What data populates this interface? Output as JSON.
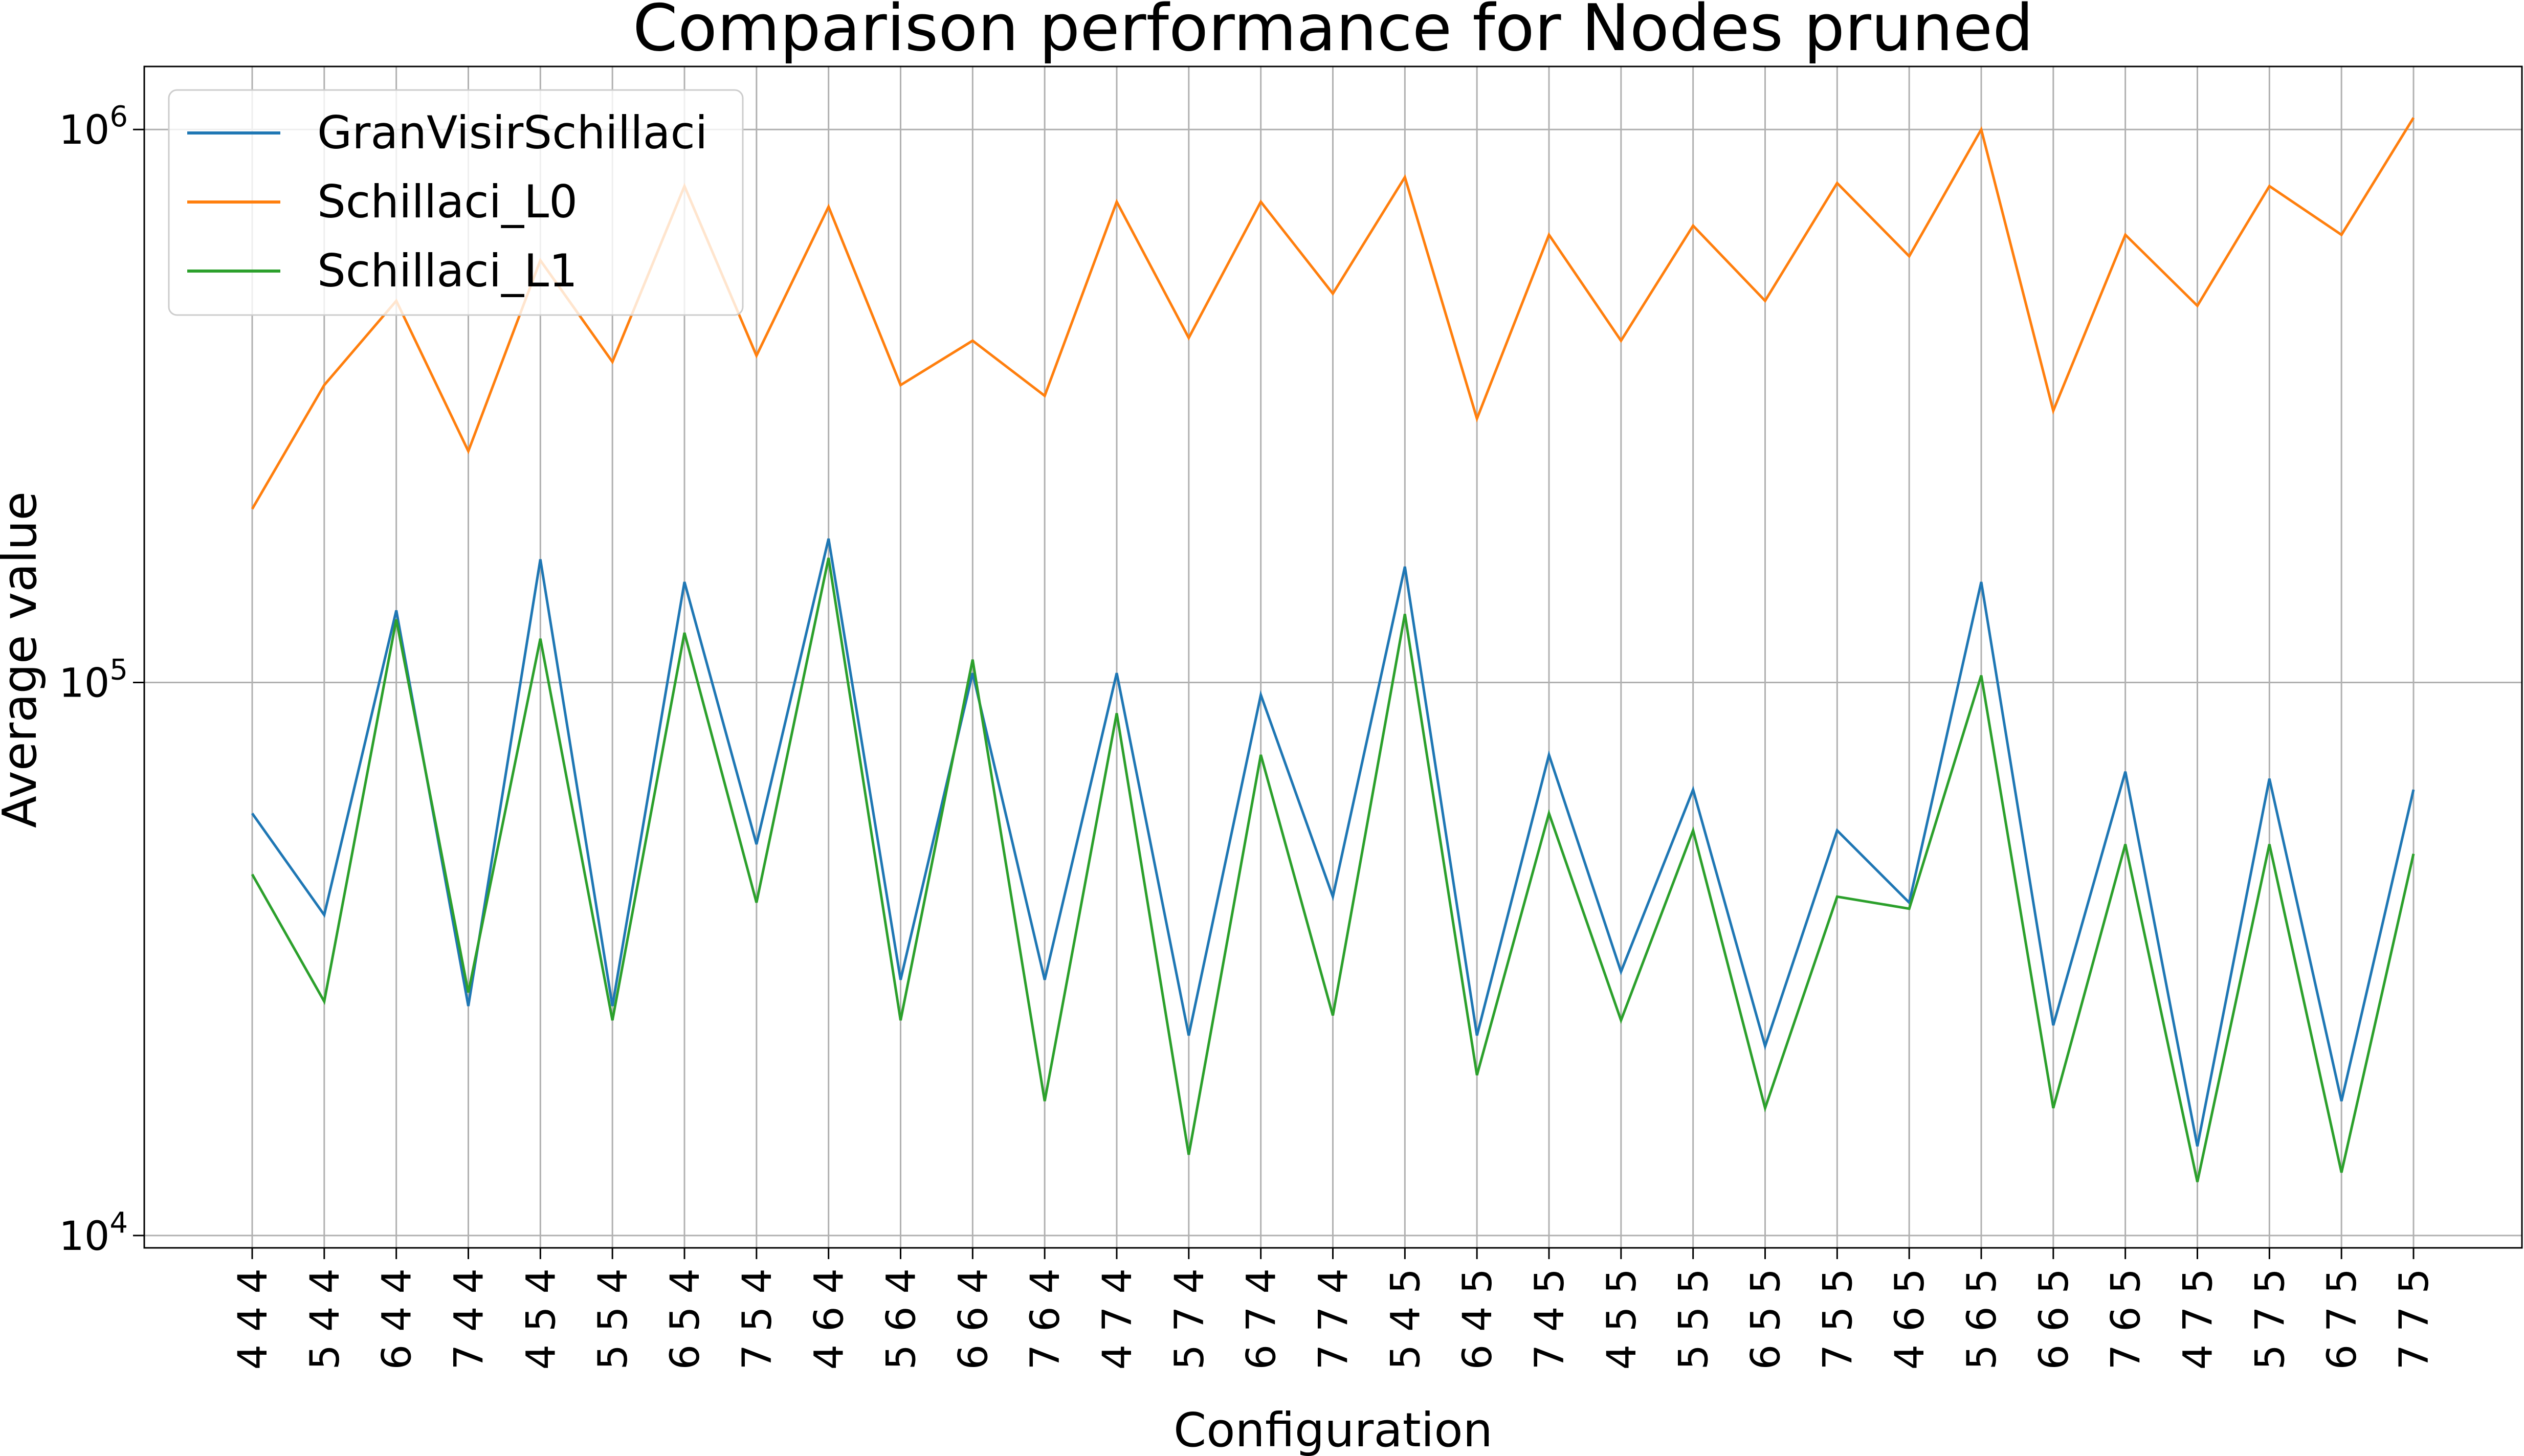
{
  "chart_data": {
    "type": "line",
    "title": "Comparison performance for Nodes pruned",
    "xlabel": "Configuration",
    "ylabel": "Average value",
    "yscale": "log",
    "ylim": [
      9500,
      1300000
    ],
    "y_ticks": [
      {
        "value": 10000,
        "base": "10",
        "exp": "4"
      },
      {
        "value": 100000,
        "base": "10",
        "exp": "5"
      },
      {
        "value": 1000000,
        "base": "10",
        "exp": "6"
      }
    ],
    "grid": true,
    "legend_position": "upper-left",
    "categories": [
      "4 4 4",
      "5 4 4",
      "6 4 4",
      "7 4 4",
      "4 5 4",
      "5 5 4",
      "6 5 4",
      "7 5 4",
      "4 6 4",
      "5 6 4",
      "6 6 4",
      "7 6 4",
      "4 7 4",
      "5 7 4",
      "6 7 4",
      "7 7 4",
      "5 4 5",
      "6 4 5",
      "7 4 5",
      "4 5 5",
      "5 5 5",
      "6 5 5",
      "7 5 5",
      "4 6 5",
      "5 6 5",
      "6 6 5",
      "7 6 5",
      "4 7 5",
      "5 7 5",
      "6 7 5",
      "7 7 5"
    ],
    "series": [
      {
        "name": "GranVisirSchillaci",
        "color": "#1f77b4",
        "values": [
          58000,
          38000,
          135000,
          26000,
          167000,
          26000,
          152000,
          51000,
          182000,
          29000,
          104000,
          29000,
          104000,
          23000,
          95000,
          41000,
          162000,
          23000,
          74000,
          30000,
          64000,
          22000,
          54000,
          40000,
          152000,
          24000,
          69000,
          14500,
          67000,
          17500,
          64000
        ]
      },
      {
        "name": "Schillaci_L0",
        "color": "#ff7f0e",
        "values": [
          206000,
          345000,
          490000,
          262000,
          580000,
          380000,
          790000,
          390000,
          725000,
          345000,
          415000,
          330000,
          740000,
          420000,
          740000,
          505000,
          820000,
          300000,
          645000,
          415000,
          670000,
          490000,
          800000,
          590000,
          1000000,
          310000,
          645000,
          480000,
          790000,
          645000,
          1050000
        ]
      },
      {
        "name": "Schillaci_L1",
        "color": "#2ca02c",
        "values": [
          45000,
          26500,
          130000,
          27500,
          120000,
          24500,
          123000,
          40000,
          168000,
          24500,
          110000,
          17500,
          88000,
          14000,
          74000,
          25000,
          133000,
          19500,
          58000,
          24500,
          54000,
          17000,
          41000,
          39000,
          103000,
          17000,
          51000,
          12500,
          51000,
          13000,
          49000
        ]
      }
    ]
  }
}
